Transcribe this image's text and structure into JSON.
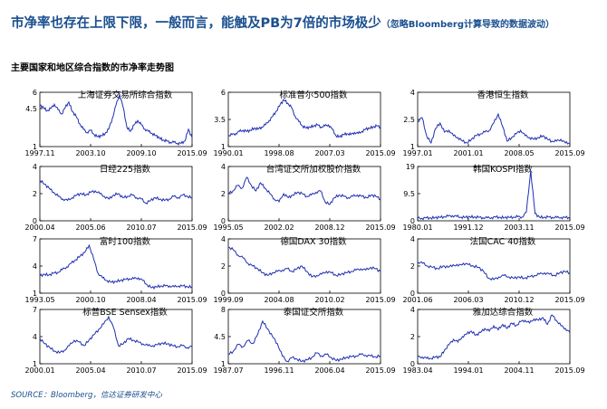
{
  "header": {
    "title": "市净率也存在上限下限，一般而言，能触及PB为7倍的市场极少",
    "title_note": "（忽略Bloomberg计算导致的数据波动）",
    "subtitle": "主要国家和地区综合指数的市净率走势图",
    "source": "SOURCE：Bloomberg，信达证券研发中心"
  },
  "style": {
    "title_color": "#1a4f8f",
    "line_color": "#1f2fb0"
  },
  "chart_data": [
    {
      "type": "line",
      "title": "上海证券交易所综合指数",
      "yticks": [
        "6",
        "4.5",
        "1"
      ],
      "ytick_values": [
        6,
        4.5,
        1
      ],
      "xticks": [
        "1997.11",
        "2003.10",
        "2009.10",
        "2015.09"
      ],
      "ylim": [
        1,
        6
      ],
      "values": [
        4.8,
        4.6,
        4.3,
        4.5,
        4.9,
        4.4,
        4.0,
        4.6,
        5.1,
        4.2,
        3.8,
        3.1,
        2.6,
        2.3,
        2.5,
        2.1,
        1.9,
        2.0,
        2.2,
        2.6,
        3.6,
        4.8,
        5.8,
        4.6,
        2.8,
        2.4,
        3.0,
        3.4,
        3.0,
        2.6,
        2.4,
        2.2,
        2.0,
        1.8,
        1.6,
        1.5,
        1.4,
        1.4,
        1.3,
        1.3,
        1.5,
        2.6,
        1.8
      ]
    },
    {
      "type": "line",
      "title": "标准普尔500指数",
      "yticks": [
        "6",
        "3.5",
        "1"
      ],
      "ytick_values": [
        6,
        3.5,
        1
      ],
      "xticks": [
        "1990.01",
        "1998.08",
        "2007.03",
        "2015.09"
      ],
      "ylim": [
        1,
        6
      ],
      "values": [
        2.0,
        2.1,
        2.2,
        2.4,
        2.5,
        2.4,
        2.5,
        2.7,
        2.6,
        2.8,
        3.0,
        3.4,
        3.8,
        4.3,
        4.9,
        5.3,
        5.0,
        4.6,
        3.8,
        3.3,
        2.9,
        2.7,
        2.8,
        2.9,
        3.0,
        2.8,
        2.9,
        3.0,
        2.6,
        2.0,
        1.9,
        2.1,
        2.2,
        2.1,
        2.3,
        2.2,
        2.4,
        2.6,
        2.7,
        2.8,
        2.9,
        2.8
      ]
    },
    {
      "type": "line",
      "title": "香港恒生指数",
      "yticks": [
        "4",
        "2.5",
        "1"
      ],
      "ytick_values": [
        4,
        2.5,
        1
      ],
      "xticks": [
        "1997.01",
        "2001.01",
        "2008.05",
        "2015.09"
      ],
      "ylim": [
        1,
        4
      ],
      "values": [
        2.4,
        2.6,
        1.6,
        1.2,
        2.0,
        2.3,
        1.8,
        1.9,
        1.6,
        1.5,
        1.3,
        1.2,
        1.4,
        1.6,
        1.7,
        1.8,
        1.9,
        2.3,
        2.8,
        2.1,
        1.3,
        1.5,
        1.7,
        1.9,
        1.6,
        1.5,
        1.4,
        1.5,
        1.6,
        1.4,
        1.3,
        1.3,
        1.4,
        1.2,
        1.2
      ]
    },
    {
      "type": "line",
      "title": "日经225指数",
      "yticks": [
        "4",
        "2",
        "0"
      ],
      "ytick_values": [
        4,
        2,
        0
      ],
      "xticks": [
        "2000.04",
        "2005.06",
        "2010.07",
        "2015.09"
      ],
      "ylim": [
        0,
        4
      ],
      "values": [
        3.0,
        2.7,
        2.4,
        2.1,
        1.8,
        1.6,
        1.5,
        1.7,
        1.9,
        2.0,
        1.9,
        2.1,
        2.2,
        2.0,
        1.8,
        1.6,
        1.9,
        2.0,
        1.7,
        1.8,
        1.9,
        1.7,
        1.6,
        1.3,
        1.5,
        1.7,
        1.6,
        1.5,
        1.6,
        1.8,
        1.7,
        1.9,
        1.8,
        1.7
      ]
    },
    {
      "type": "line",
      "title": "台湾证交所加权股价指数",
      "yticks": [
        "4",
        "2",
        "0"
      ],
      "ytick_values": [
        4,
        2,
        0
      ],
      "xticks": [
        "1995.05",
        "2002.02",
        "2008.12",
        "2015.09"
      ],
      "ylim": [
        0,
        4
      ],
      "values": [
        2.0,
        2.2,
        2.6,
        2.4,
        3.2,
        2.6,
        2.2,
        2.8,
        2.4,
        2.0,
        1.6,
        1.4,
        2.0,
        1.7,
        1.9,
        2.1,
        2.0,
        1.8,
        1.9,
        2.1,
        2.2,
        1.4,
        1.2,
        1.7,
        1.9,
        1.8,
        1.7,
        1.8,
        1.9,
        1.8,
        1.7,
        1.9,
        1.8,
        1.6
      ]
    },
    {
      "type": "line",
      "title": "韩国KOSPI指数",
      "yticks": [
        "19",
        "9.5",
        "0"
      ],
      "ytick_values": [
        19,
        9.5,
        0
      ],
      "xticks": [
        "1980.01",
        "1991.12",
        "2003.11",
        "2015.09"
      ],
      "ylim": [
        0,
        19
      ],
      "values": [
        0.9,
        0.9,
        1.0,
        1.0,
        1.1,
        1.2,
        1.4,
        1.6,
        1.8,
        1.5,
        1.3,
        1.2,
        1.4,
        1.3,
        1.2,
        1.1,
        1.0,
        1.1,
        1.3,
        1.2,
        1.1,
        1.2,
        1.3,
        1.4,
        1.3,
        3.0,
        17.5,
        2.5,
        1.3,
        1.2,
        1.3,
        1.2,
        1.1,
        1.2,
        1.1,
        1.1
      ]
    },
    {
      "type": "line",
      "title": "富时100指数",
      "yticks": [
        "7",
        "4",
        "1"
      ],
      "ytick_values": [
        7,
        4,
        1
      ],
      "xticks": [
        "1993.05",
        "2000.10",
        "2008.04",
        "2015.09"
      ],
      "ylim": [
        1,
        7
      ],
      "values": [
        2.9,
        3.1,
        3.0,
        3.2,
        3.3,
        3.6,
        3.9,
        4.3,
        4.7,
        5.1,
        5.5,
        6.3,
        4.8,
        3.2,
        2.7,
        2.4,
        2.2,
        2.3,
        2.4,
        2.5,
        2.6,
        2.6,
        2.7,
        2.4,
        1.9,
        1.6,
        1.7,
        1.8,
        1.8,
        1.8,
        1.7,
        1.8,
        1.8,
        1.7,
        1.7
      ]
    },
    {
      "type": "line",
      "title": "德国DAX 30指数",
      "yticks": [
        "4",
        "2",
        "0"
      ],
      "ytick_values": [
        4,
        2,
        0
      ],
      "xticks": [
        "1999.09",
        "2004.08",
        "2010.02",
        "2015.09"
      ],
      "ylim": [
        0,
        4
      ],
      "values": [
        3.4,
        3.2,
        2.8,
        2.6,
        2.2,
        2.0,
        1.8,
        1.5,
        1.3,
        1.5,
        1.6,
        1.7,
        1.8,
        1.6,
        1.8,
        2.0,
        1.6,
        1.2,
        1.3,
        1.4,
        1.6,
        1.5,
        1.3,
        1.4,
        1.5,
        1.6,
        1.7,
        1.8,
        1.7,
        1.9,
        1.8,
        1.6
      ]
    },
    {
      "type": "line",
      "title": "法国CAC 40指数",
      "yticks": [
        "4",
        "2",
        "0"
      ],
      "ytick_values": [
        4,
        2,
        0
      ],
      "xticks": [
        "2001.06",
        "2006.03",
        "2010.12",
        "2015.09"
      ],
      "ylim": [
        0,
        4
      ],
      "values": [
        2.3,
        2.2,
        2.0,
        1.9,
        1.8,
        2.0,
        1.9,
        2.1,
        2.0,
        2.2,
        2.1,
        2.0,
        1.9,
        1.6,
        1.1,
        1.0,
        1.2,
        1.3,
        1.2,
        1.1,
        1.2,
        1.1,
        1.2,
        1.3,
        1.4,
        1.5,
        1.4,
        1.3,
        1.5,
        1.6,
        1.5
      ]
    },
    {
      "type": "line",
      "title": "标普BSE Sensex指数",
      "yticks": [
        "7",
        "4",
        "1"
      ],
      "ytick_values": [
        7,
        4,
        1
      ],
      "xticks": [
        "2000.01",
        "2005.04",
        "2010.07",
        "2015.09"
      ],
      "ylim": [
        1,
        7
      ],
      "values": [
        3.8,
        3.2,
        2.8,
        2.4,
        2.2,
        2.5,
        3.0,
        3.6,
        3.4,
        3.0,
        3.6,
        4.2,
        4.8,
        5.4,
        6.2,
        5.0,
        3.0,
        3.2,
        3.8,
        3.6,
        3.4,
        3.2,
        3.0,
        3.0,
        3.1,
        3.3,
        3.2,
        3.0,
        2.9,
        3.0,
        2.8,
        2.9
      ]
    },
    {
      "type": "line",
      "title": "泰国证交所指数",
      "yticks": [
        "8",
        "4.5",
        "1"
      ],
      "ytick_values": [
        8,
        4.5,
        1
      ],
      "xticks": [
        "1987.07",
        "1996.11",
        "2006.04",
        "2015.09"
      ],
      "ylim": [
        1,
        8
      ],
      "values": [
        2.2,
        2.6,
        3.5,
        3.2,
        4.0,
        3.6,
        4.8,
        6.5,
        5.5,
        4.5,
        3.6,
        2.0,
        1.3,
        1.8,
        1.6,
        1.3,
        1.5,
        1.8,
        2.4,
        2.0,
        2.2,
        1.8,
        1.4,
        1.6,
        1.8,
        1.9,
        2.0,
        2.2,
        2.1,
        2.0,
        1.9,
        2.0
      ]
    },
    {
      "type": "line",
      "title": "雅加达综合指数",
      "yticks": [
        "4",
        "2",
        "0"
      ],
      "ytick_values": [
        4,
        2,
        0
      ],
      "xticks": [
        "1983.04",
        "1994.01",
        "2004.11",
        "2015.09"
      ],
      "ylim": [
        0,
        4
      ],
      "values": [
        0.5,
        0.5,
        0.4,
        0.4,
        0.5,
        0.5,
        1.0,
        1.4,
        1.8,
        1.6,
        2.0,
        2.2,
        2.4,
        2.1,
        2.3,
        2.6,
        2.4,
        2.8,
        2.5,
        2.9,
        2.6,
        3.0,
        2.8,
        3.1,
        3.2,
        3.0,
        3.3,
        3.2,
        3.4,
        2.9,
        3.6,
        3.2,
        2.8,
        2.6,
        2.3
      ]
    }
  ]
}
